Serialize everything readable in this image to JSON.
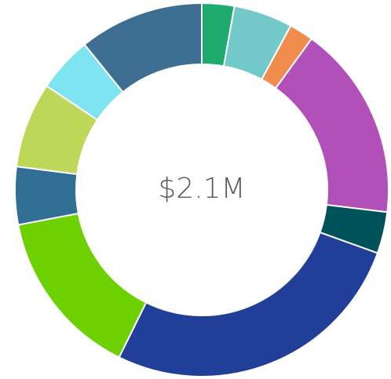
{
  "chart_data": {
    "type": "donut",
    "center_label": "$2.1M",
    "values": [
      2.8,
      5.1,
      2.1,
      16.9,
      3.6,
      26.8,
      14.7,
      5.0,
      7.4,
      4.8,
      10.8
    ],
    "colors": [
      "#1faa6e",
      "#73c9c9",
      "#f08c4e",
      "#b050b8",
      "#00525a",
      "#213f99",
      "#6dd000",
      "#306f93",
      "#bdd858",
      "#7fe4f2",
      "#3e6f92"
    ]
  }
}
